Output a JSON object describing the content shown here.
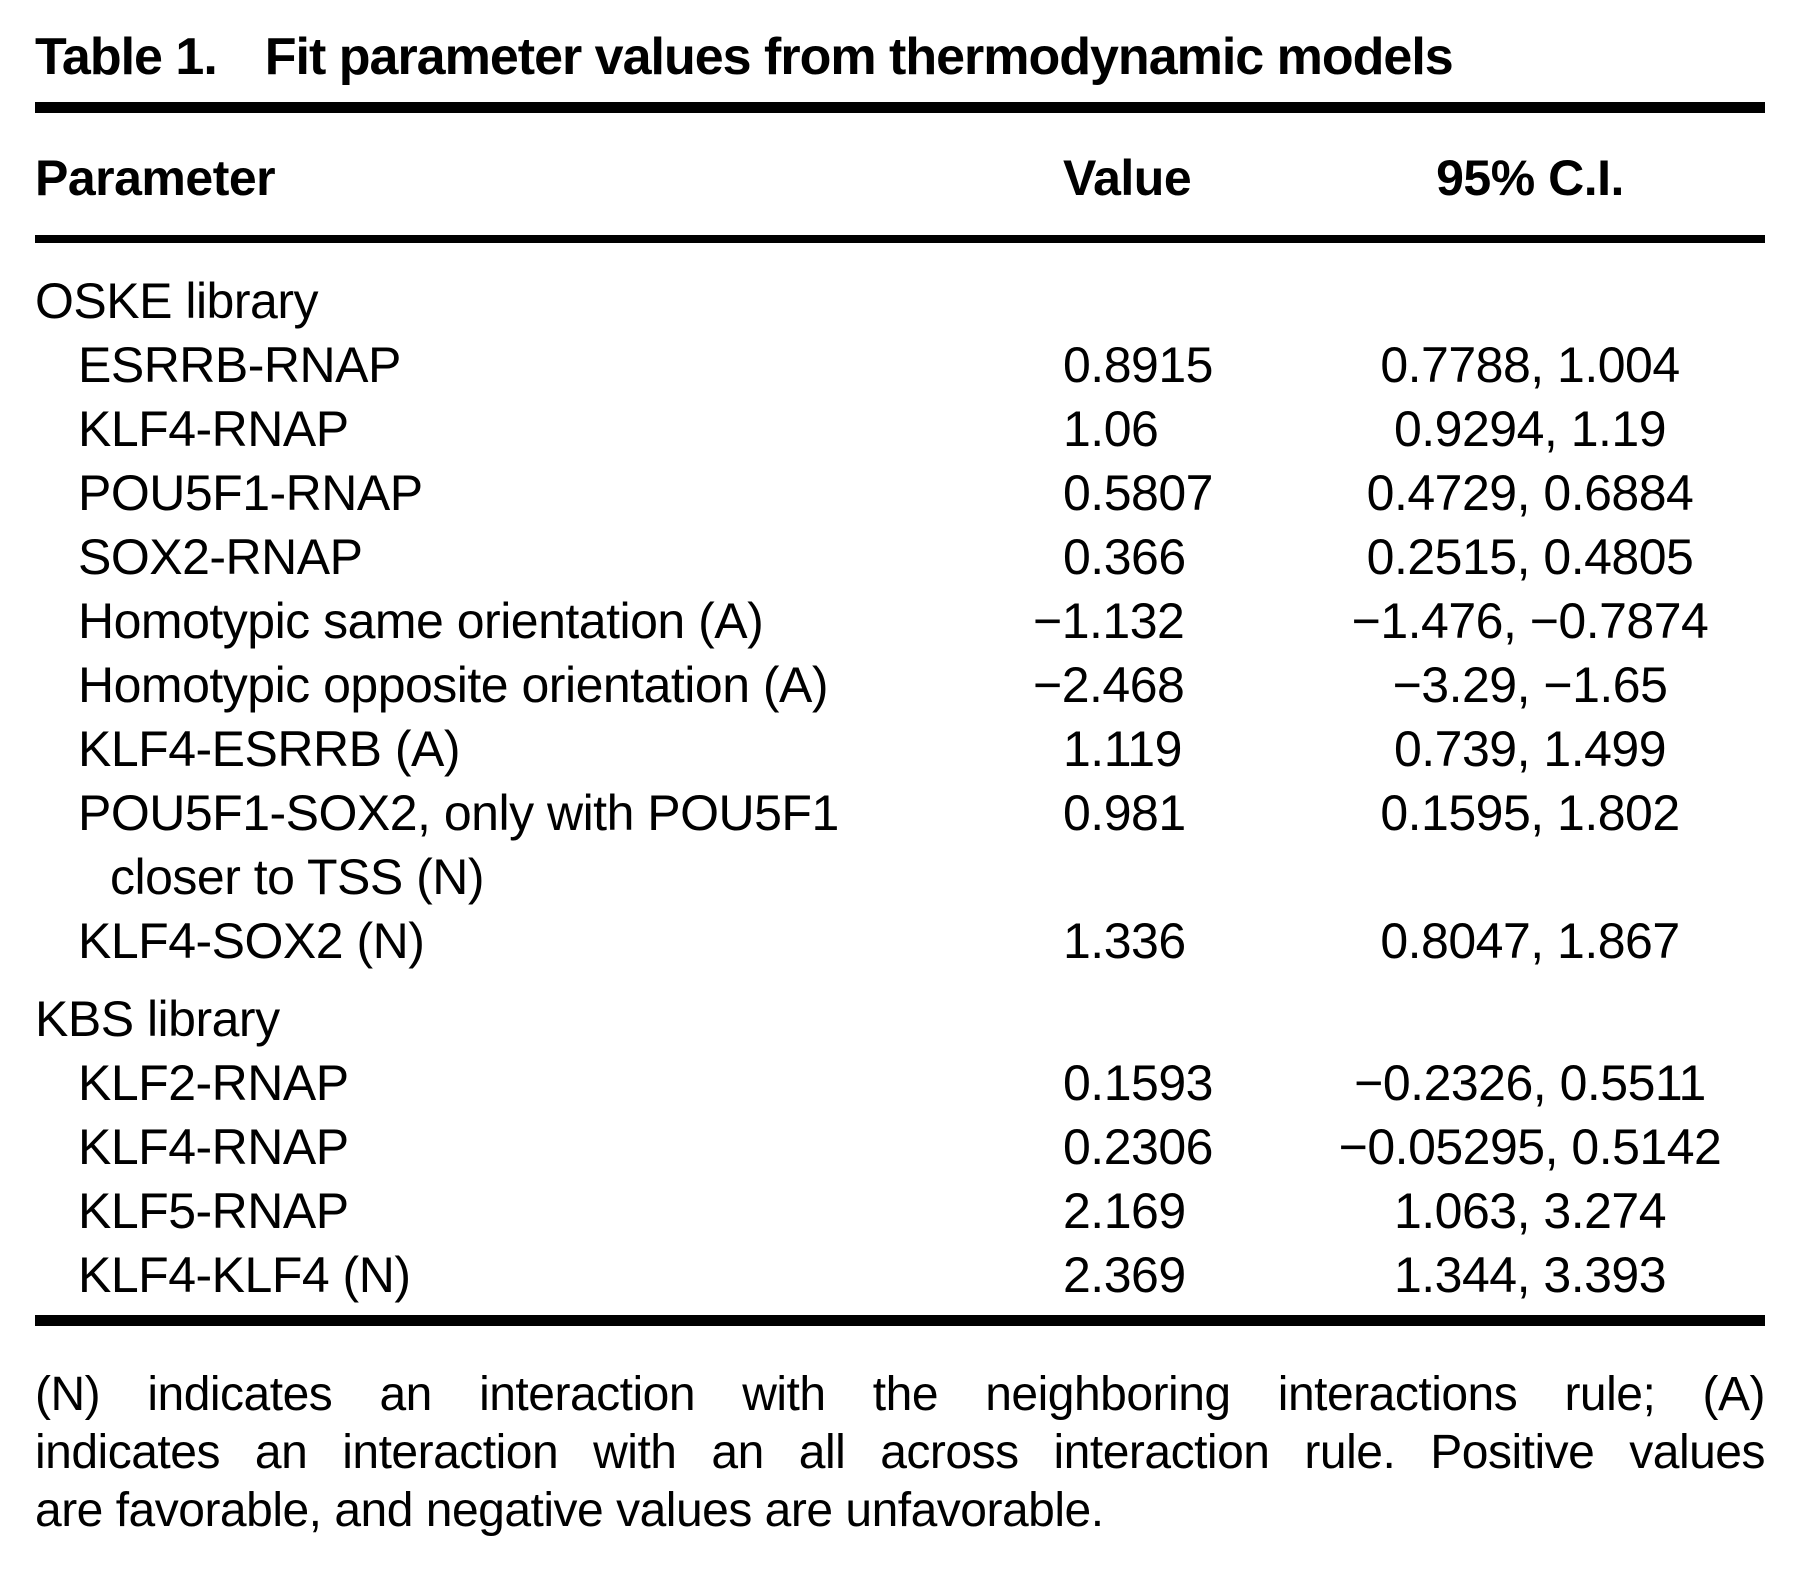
{
  "table": {
    "title_label": "Table 1.",
    "title_text": "Fit parameter values from thermodynamic models",
    "columns": {
      "parameter": "Parameter",
      "value": "Value",
      "ci": "95% C.I."
    },
    "sections": [
      {
        "name": "OSKE library",
        "rows": [
          {
            "param": "ESRRB-RNAP",
            "value": "0.8915",
            "ci": "0.7788, 1.004"
          },
          {
            "param": "KLF4-RNAP",
            "value": "1.06",
            "ci": "0.9294, 1.19"
          },
          {
            "param": "POU5F1-RNAP",
            "value": "0.5807",
            "ci": "0.4729, 0.6884"
          },
          {
            "param": "SOX2-RNAP",
            "value": "0.366",
            "ci": "0.2515, 0.4805"
          },
          {
            "param": "Homotypic same orientation (A)",
            "value": "−1.132",
            "ci": "−1.476, −0.7874"
          },
          {
            "param": "Homotypic opposite orientation (A)",
            "value": "−2.468",
            "ci": "−3.29, −1.65"
          },
          {
            "param": "KLF4-ESRRB (A)",
            "value": "1.119",
            "ci": "0.739, 1.499"
          },
          {
            "param": "POU5F1-SOX2, only with POU5F1",
            "param_line2": "closer to TSS (N)",
            "value": "0.981",
            "ci": "0.1595, 1.802"
          },
          {
            "param": "KLF4-SOX2 (N)",
            "value": "1.336",
            "ci": "0.8047, 1.867"
          }
        ]
      },
      {
        "name": "KBS library",
        "rows": [
          {
            "param": "KLF2-RNAP",
            "value": "0.1593",
            "ci": "−0.2326, 0.5511"
          },
          {
            "param": "KLF4-RNAP",
            "value": "0.2306",
            "ci": "−0.05295, 0.5142"
          },
          {
            "param": "KLF5-RNAP",
            "value": "2.169",
            "ci": "1.063, 3.274"
          },
          {
            "param": "KLF4-KLF4 (N)",
            "value": "2.369",
            "ci": "1.344, 3.393"
          }
        ]
      }
    ],
    "footnote_lines": [
      "(N) indicates an interaction with the neighboring interactions rule; (A)",
      "indicates an interaction with an all across interaction rule. Positive values",
      "are favorable, and negative values are unfavorable."
    ],
    "colors": {
      "text": "#000000",
      "background": "#ffffff"
    }
  }
}
